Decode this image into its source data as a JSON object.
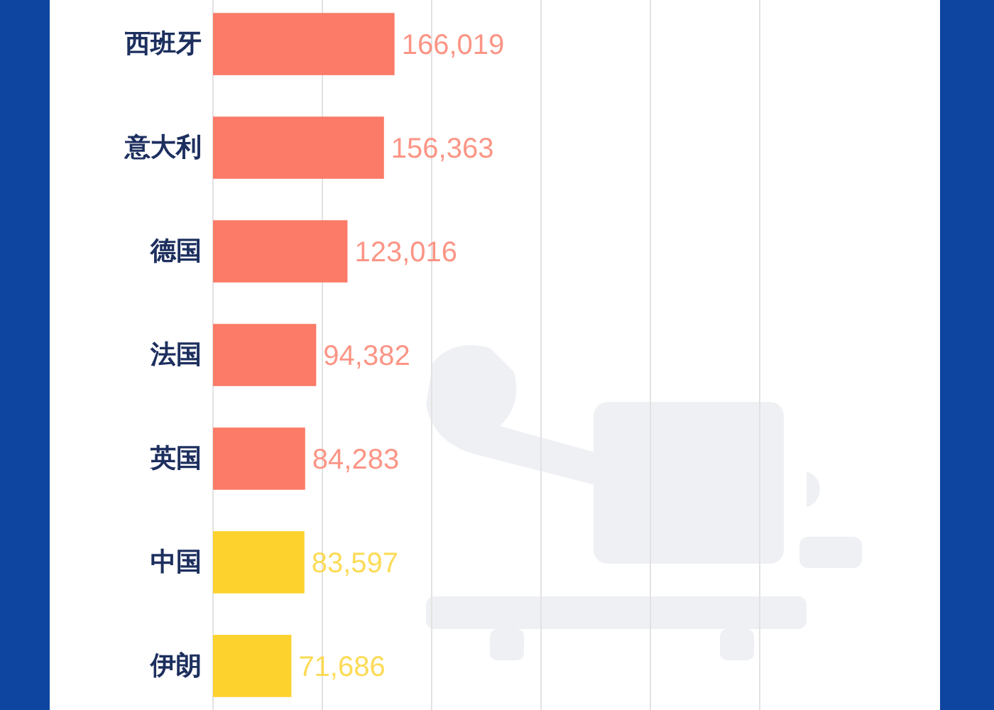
{
  "chart_data": {
    "type": "bar",
    "orientation": "horizontal",
    "categories": [
      "西班牙",
      "意大利",
      "德国",
      "法国",
      "英国",
      "中国",
      "伊朗"
    ],
    "values": [
      166019,
      156363,
      123016,
      94382,
      84283,
      83597,
      71686
    ],
    "value_labels": [
      "166,019",
      "156,363",
      "123,016",
      "94,382",
      "84,283",
      "83,597",
      "71,686"
    ],
    "colors": [
      "#fb7b68",
      "#fb7b68",
      "#fb7b68",
      "#fb7b68",
      "#fb7b68",
      "#fdd22d",
      "#fdd22d"
    ],
    "xlim": [
      0,
      500000
    ],
    "xticks": [
      {
        "value": 0,
        "label": null
      },
      {
        "value": 100000,
        "label": null
      },
      {
        "value": 200000,
        "label": null
      },
      {
        "value": 300000,
        "label": null
      },
      {
        "value": 400000,
        "label": null
      },
      {
        "value": 500000,
        "label": null
      }
    ],
    "grid": "x",
    "tick_labels": "y"
  }
}
